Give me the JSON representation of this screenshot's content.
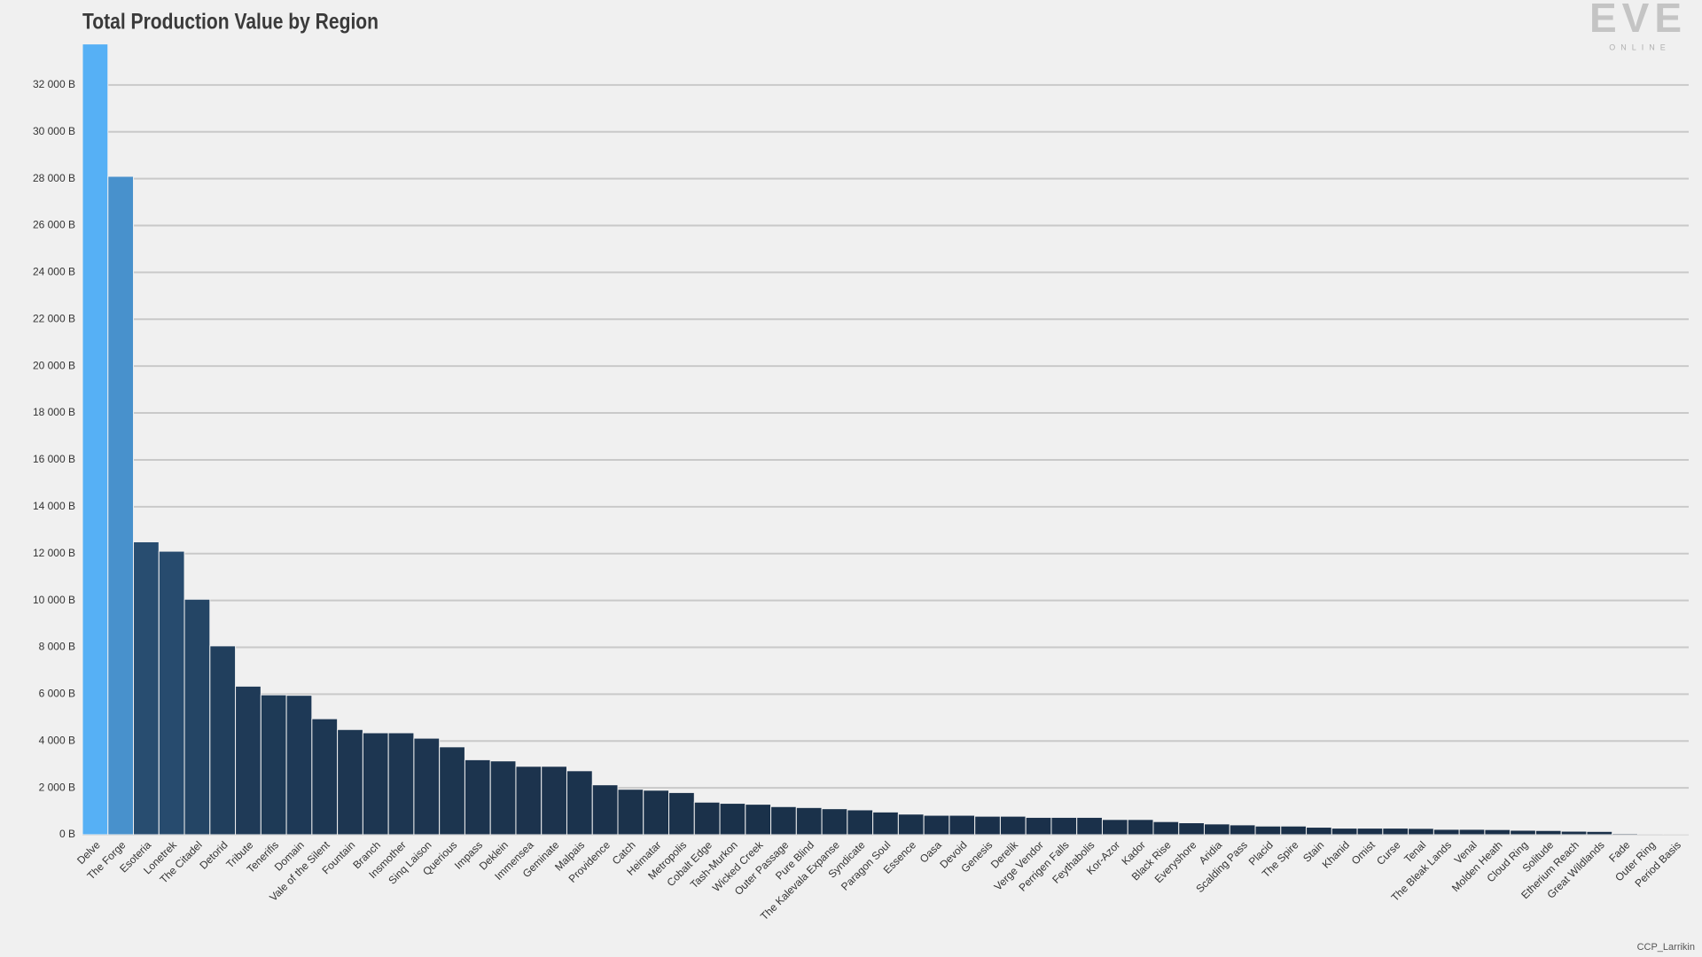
{
  "chart_data": {
    "type": "bar",
    "title": "Total Production Value by Region",
    "logo": "EVE",
    "logo_sub": "ONLINE",
    "credit": "CCP_Larrikin",
    "categories": [
      "Delve",
      "The Forge",
      "Esoteria",
      "Lonetrek",
      "The Citadel",
      "Detorid",
      "Tribute",
      "Tenerifis",
      "Domain",
      "Vale of the Silent",
      "Fountain",
      "Branch",
      "Insmother",
      "Sinq Laison",
      "Querious",
      "Impass",
      "Deklein",
      "Immensea",
      "Geminate",
      "Malpais",
      "Providence",
      "Catch",
      "Heimatar",
      "Metropolis",
      "Cobalt Edge",
      "Tash-Murkon",
      "Wicked Creek",
      "Outer Passage",
      "Pure Blind",
      "The Kalevala Expanse",
      "Syndicate",
      "Paragon Soul",
      "Essence",
      "Oasa",
      "Devoid",
      "Genesis",
      "Derelik",
      "Verge Vendor",
      "Perrigen Falls",
      "Feythabolis",
      "Kor-Azor",
      "Kador",
      "Black Rise",
      "Everyshore",
      "Aridia",
      "Scalding Pass",
      "Placid",
      "The Spire",
      "Stain",
      "Khanid",
      "Omist",
      "Curse",
      "Tenal",
      "The Bleak Lands",
      "Venal",
      "Molden Heath",
      "Cloud Ring",
      "Solitude",
      "Etherium Reach",
      "Great Wildlands",
      "Fade",
      "Outer Ring",
      "Period Basis"
    ],
    "values": [
      33750,
      28100,
      12500,
      12100,
      10050,
      8060,
      6340,
      5970,
      5950,
      4950,
      4490,
      4350,
      4350,
      4120,
      3750,
      3200,
      3150,
      2920,
      2920,
      2730,
      2130,
      1940,
      1900,
      1800,
      1390,
      1340,
      1300,
      1200,
      1160,
      1110,
      1060,
      970,
      880,
      830,
      830,
      790,
      790,
      740,
      740,
      740,
      650,
      650,
      560,
      510,
      460,
      420,
      370,
      370,
      320,
      280,
      280,
      280,
      270,
      230,
      230,
      220,
      190,
      180,
      150,
      140,
      50,
      40,
      10
    ],
    "color_scale": [
      "#1a3049",
      "#56b0f5"
    ],
    "ylim": [
      0,
      34000
    ],
    "yticks": [
      {
        "value": 0,
        "label": "0 B"
      },
      {
        "value": 2000,
        "label": "2 000 B"
      },
      {
        "value": 4000,
        "label": "4 000 B"
      },
      {
        "value": 6000,
        "label": "6 000 B"
      },
      {
        "value": 8000,
        "label": "8 000 B"
      },
      {
        "value": 10000,
        "label": "10 000 B"
      },
      {
        "value": 12000,
        "label": "12 000 B"
      },
      {
        "value": 14000,
        "label": "14 000 B"
      },
      {
        "value": 16000,
        "label": "16 000 B"
      },
      {
        "value": 18000,
        "label": "18 000 B"
      },
      {
        "value": 20000,
        "label": "20 000 B"
      },
      {
        "value": 22000,
        "label": "22 000 B"
      },
      {
        "value": 24000,
        "label": "24 000 B"
      },
      {
        "value": 26000,
        "label": "26 000 B"
      },
      {
        "value": 28000,
        "label": "28 000 B"
      },
      {
        "value": 30000,
        "label": "30 000 B"
      },
      {
        "value": 32000,
        "label": "32 000 B"
      }
    ],
    "grid": true
  }
}
